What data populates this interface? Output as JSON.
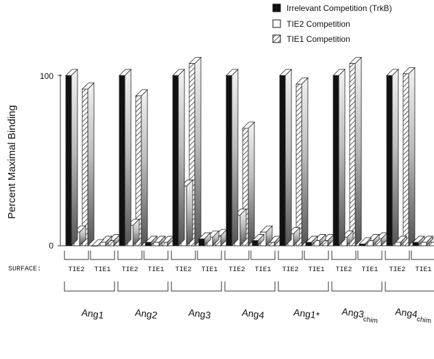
{
  "chart_data": {
    "type": "bar",
    "ylabel": "Percent Maximal Binding",
    "ylim": [
      0,
      100
    ],
    "yticks": [
      "0",
      "100"
    ],
    "surface_label": "SURFACE:",
    "surfaces": [
      "TIE2",
      "TIE1"
    ],
    "series": [
      {
        "name": "Irrelevant Competition (TrkB)",
        "fill": "#111111"
      },
      {
        "name": "TIE2 Competition",
        "fill": "#ffffff"
      },
      {
        "name": "TIE1 Competition",
        "fill": "hatch"
      }
    ],
    "groups": [
      {
        "name": "Ang1",
        "sub": "",
        "values": {
          "TIE2": [
            100,
            8,
            92
          ],
          "TIE1": [
            0,
            2,
            3
          ]
        }
      },
      {
        "name": "Ang2",
        "sub": "",
        "values": {
          "TIE2": [
            100,
            12,
            88
          ],
          "TIE1": [
            2,
            2,
            2
          ]
        }
      },
      {
        "name": "Ang3",
        "sub": "",
        "values": {
          "TIE2": [
            100,
            35,
            107
          ],
          "TIE1": [
            4,
            5,
            6
          ]
        }
      },
      {
        "name": "Ang4",
        "sub": "",
        "values": {
          "TIE2": [
            100,
            18,
            69
          ],
          "TIE1": [
            3,
            8,
            2
          ]
        }
      },
      {
        "name": "Ang1*",
        "sub": "",
        "values": {
          "TIE2": [
            100,
            7,
            95
          ],
          "TIE1": [
            2,
            3,
            3
          ]
        }
      },
      {
        "name": "Ang3",
        "sub": "chim",
        "values": {
          "TIE2": [
            100,
            5,
            107
          ],
          "TIE1": [
            1,
            3,
            4
          ]
        }
      },
      {
        "name": "Ang4",
        "sub": "chim",
        "values": {
          "TIE2": [
            100,
            2,
            101
          ],
          "TIE1": [
            2,
            2,
            2
          ]
        }
      }
    ]
  }
}
